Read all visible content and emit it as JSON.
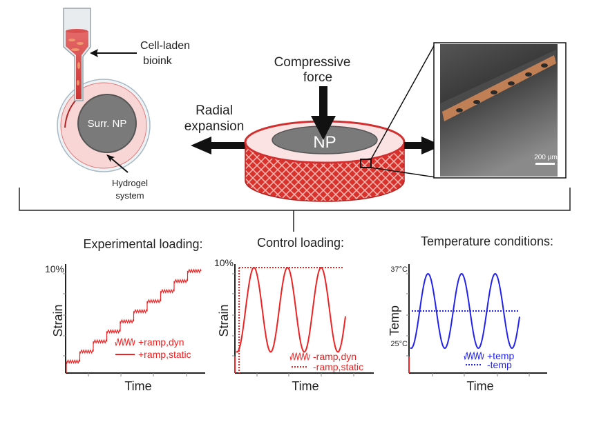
{
  "labels": {
    "bioink_line1": "Cell-laden",
    "bioink_line2": "bioink",
    "surr_np": "Surr. NP",
    "hydrogel_line1": "Hydrogel",
    "hydrogel_line2": "system",
    "force_line1": "Compressive",
    "force_line2": "force",
    "radial_line1": "Radial",
    "radial_line2": "expansion",
    "np": "NP",
    "scale_bar": "200 µm"
  },
  "colors": {
    "red": "#ee2222",
    "blue": "#2222ee",
    "pink": "#f9d6d6",
    "np_gray": "#7a7a7a",
    "fiber_orange": "#e8925a"
  },
  "chart_data": [
    {
      "type": "line",
      "title": "Experimental loading:",
      "xlabel": "Time",
      "ylabel": "Strain",
      "ytick_labels": [
        "10%"
      ],
      "legend": [
        {
          "name": "+ramp,dyn",
          "style": "wavy"
        },
        {
          "name": "+ramp,static",
          "style": "solid"
        }
      ],
      "series": [
        {
          "name": "+ramp,dyn",
          "color": "#ee2222",
          "shape": "staircase with small oscillations",
          "steps": [
            1,
            2,
            3,
            4,
            5,
            6,
            7,
            8,
            9,
            10
          ]
        }
      ],
      "ylim": [
        0,
        10
      ]
    },
    {
      "type": "line",
      "title": "Control loading:",
      "xlabel": "Time",
      "ylabel": "Strain",
      "ytick_labels": [
        "10%"
      ],
      "legend": [
        {
          "name": "-ramp,dyn",
          "style": "wavy"
        },
        {
          "name": "-ramp,static",
          "style": "dotted"
        }
      ],
      "series": [
        {
          "name": "-ramp,dyn",
          "color": "#ee2222",
          "shape": "sinusoid",
          "min": 2,
          "max": 10,
          "cycles": 3
        },
        {
          "name": "-ramp,static",
          "color": "#ee2222",
          "shape": "constant",
          "value": 10
        }
      ],
      "ylim": [
        0,
        10
      ]
    },
    {
      "type": "line",
      "title": "Temperature conditions:",
      "xlabel": "Time",
      "ylabel": "Temp",
      "ytick_labels": [
        "37°C",
        "25°C"
      ],
      "legend": [
        {
          "name": "+temp",
          "style": "wavy"
        },
        {
          "name": "-temp",
          "style": "dotted"
        }
      ],
      "series": [
        {
          "name": "+temp",
          "color": "#2222ee",
          "shape": "sinusoid",
          "min": 25,
          "max": 37,
          "cycles": 3
        },
        {
          "name": "-temp",
          "color": "#2222ee",
          "shape": "constant",
          "value": 31
        }
      ],
      "ylim": [
        21,
        38
      ]
    }
  ]
}
